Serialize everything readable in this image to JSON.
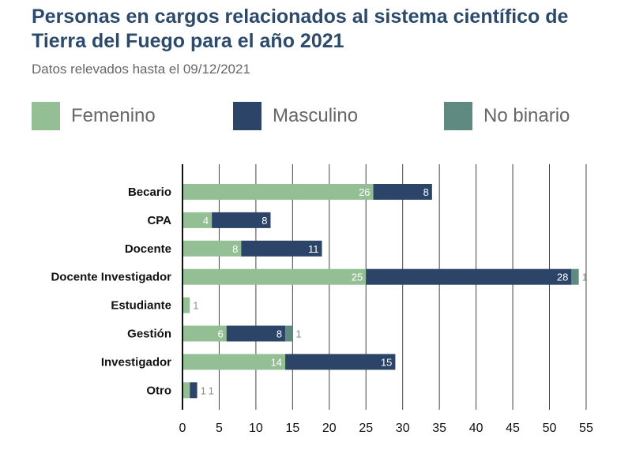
{
  "title": "Personas en cargos relacionados al sistema científico de Tierra del Fuego para el año 2021",
  "subtitle": "Datos relevados hasta el 09/12/2021",
  "colors": {
    "femenino": "#94bf94",
    "masculino": "#2b4468",
    "no_binario": "#5e8a82",
    "grid": "#444444",
    "label_light": "#ffffff",
    "label_outside": "#8a8a8a"
  },
  "chart_data": {
    "type": "bar",
    "orientation": "horizontal",
    "stacked": true,
    "categories": [
      "Becario",
      "CPA",
      "Docente",
      "Docente Investigador",
      "Estudiante",
      "Gestión",
      "Investigador",
      "Otro"
    ],
    "series": [
      {
        "name": "Femenino",
        "values": [
          26,
          4,
          8,
          25,
          1,
          6,
          14,
          1
        ]
      },
      {
        "name": "Masculino",
        "values": [
          8,
          8,
          11,
          28,
          0,
          8,
          15,
          1
        ]
      },
      {
        "name": "No binario",
        "values": [
          0,
          0,
          0,
          1,
          0,
          1,
          0,
          0
        ]
      }
    ],
    "xlim": [
      0,
      55
    ],
    "xticks": [
      0,
      5,
      10,
      15,
      20,
      25,
      30,
      35,
      40,
      45,
      50,
      55
    ],
    "grid": true,
    "legend_position": "top"
  }
}
